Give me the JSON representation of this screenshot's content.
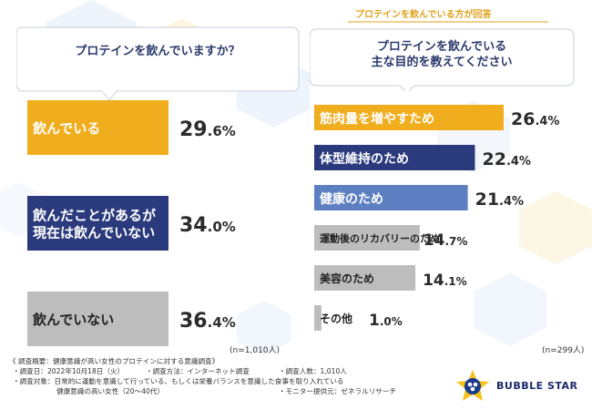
{
  "colors": {
    "gold": "#f0ae1e",
    "navy": "#2b3a7c",
    "blue": "#5d7fc2",
    "gray": "#bdbdbd"
  },
  "left": {
    "question": "プロテインを飲んでいますか？",
    "sample": "(n=1,010人)"
  },
  "right": {
    "badge": "プロテインを飲んでいる方が回答",
    "question_line1": "プロテインを飲んでいる",
    "question_line2": "主な目的を教えてください",
    "sample": "(n=299人)"
  },
  "chart_data": [
    {
      "type": "bar",
      "title": "プロテインを飲んでいますか？",
      "categories": [
        "飲んでいる",
        "飲んだことがあるが現在は飲んでいない",
        "飲んでいない"
      ],
      "values": [
        29.6,
        34.0,
        36.4
      ],
      "value_labels": [
        "29.6%",
        "34.0%",
        "36.4%"
      ],
      "label_lines": [
        [
          "飲んでいる"
        ],
        [
          "飲んだことがあるが",
          "現在は飲んでいない"
        ],
        [
          "飲んでいない"
        ]
      ],
      "bar_colors": [
        "#f0ae1e",
        "#2b3a7c",
        "#bdbdbd"
      ],
      "unit": "%"
    },
    {
      "type": "bar",
      "title": "プロテインを飲んでいる主な目的を教えてください",
      "categories": [
        "筋肉量を増やすため",
        "体型維持のため",
        "健康のため",
        "運動後のリカバリーのため",
        "美容のため",
        "その他"
      ],
      "values": [
        26.4,
        22.4,
        21.4,
        14.7,
        14.1,
        1.0
      ],
      "value_labels": [
        "26.4%",
        "22.4%",
        "21.4%",
        "14.7%",
        "14.1%",
        "1.0%"
      ],
      "bar_colors": [
        "#f0ae1e",
        "#2b3a7c",
        "#5d7fc2",
        "#bdbdbd",
        "#bdbdbd",
        "#bdbdbd"
      ],
      "unit": "%"
    }
  ],
  "footer": {
    "line1": "《 調査概要：健康意識が高い女性のプロテインに対する意識調査》",
    "date": "・調査日：2022年10月18日（火）",
    "method": "・調査方法：インターネット調査",
    "count": "・調査人数：1,010人",
    "target": "・調査対象：日常的に運動を意識して行っている、もしくは栄養バランスを意識した食事を取り入れている",
    "target2": "健康意識の高い女性（20〜40代）",
    "provider": "・モニター提供元：ゼネラルリサーチ"
  },
  "brand": {
    "name": "BUBBLE STAR"
  }
}
